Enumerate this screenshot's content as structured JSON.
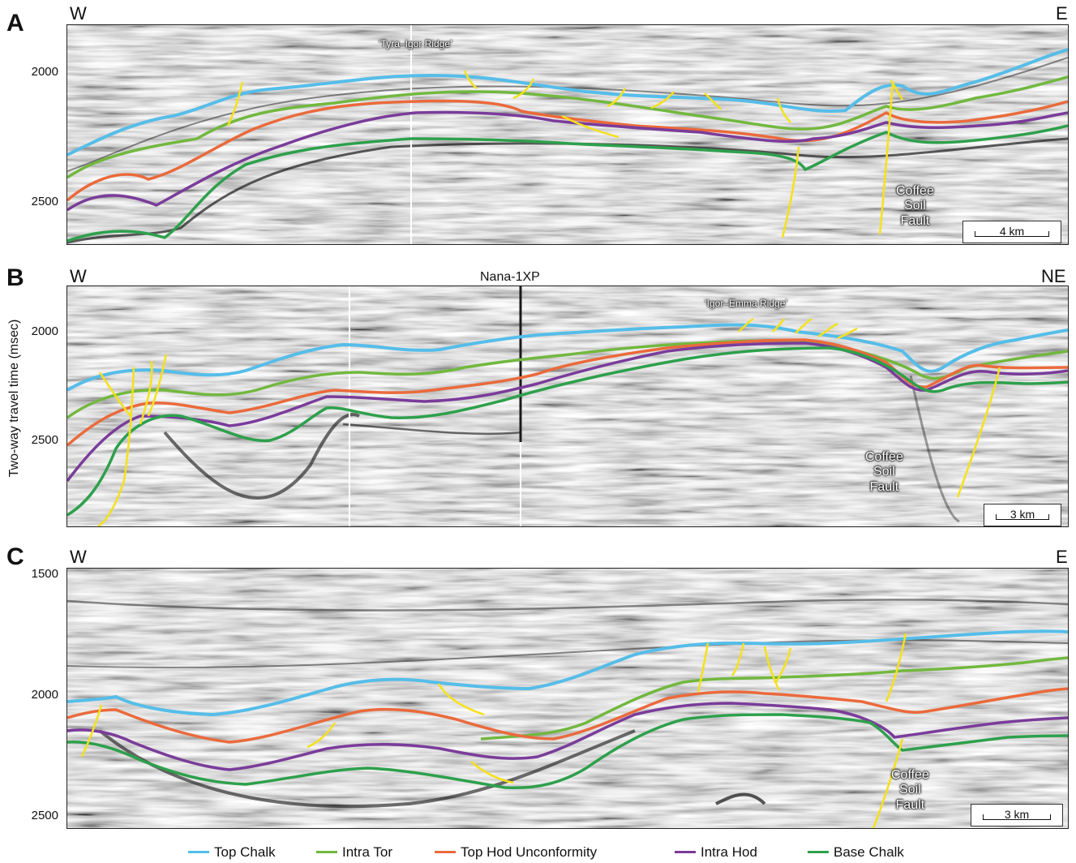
{
  "colors": {
    "top_chalk": "#56bde8",
    "intra_tor": "#72b83f",
    "top_hod": "#ea6a3c",
    "intra_hod": "#7a3c9a",
    "base_chalk": "#2ea04c",
    "fault": "#f5e11a"
  },
  "y_axis_label": "Two-way travel time (msec)",
  "panels": {
    "a": {
      "letter": "A",
      "west": "W",
      "east": "E",
      "ticks": [
        "2000",
        "2500"
      ],
      "ridge_label": "‘Tyra–Igor Ridge’",
      "fault_label": "Coffee\nSoil\nFault",
      "scale": "4 km"
    },
    "b": {
      "letter": "B",
      "west": "W",
      "east": "NE",
      "ticks": [
        "2000",
        "2500"
      ],
      "well_label": "Nana-1XP",
      "ridge_label": "‘Igor–Emma Ridge’",
      "fault_label": "Coffee\nSoil\nFault",
      "scale": "3 km"
    },
    "c": {
      "letter": "C",
      "west": "W",
      "east": "E",
      "ticks": [
        "1500",
        "2000",
        "2500"
      ],
      "fault_label": "Coffee\nSoil\nFault",
      "scale": "3 km"
    }
  },
  "legend": [
    {
      "label": "Top Chalk",
      "color": "#56bde8"
    },
    {
      "label": "Intra Tor",
      "color": "#72b83f"
    },
    {
      "label": "Top Hod Unconformity",
      "color": "#ea6a3c"
    },
    {
      "label": "Intra Hod",
      "color": "#7a3c9a"
    },
    {
      "label": "Base Chalk",
      "color": "#2ea04c"
    }
  ]
}
